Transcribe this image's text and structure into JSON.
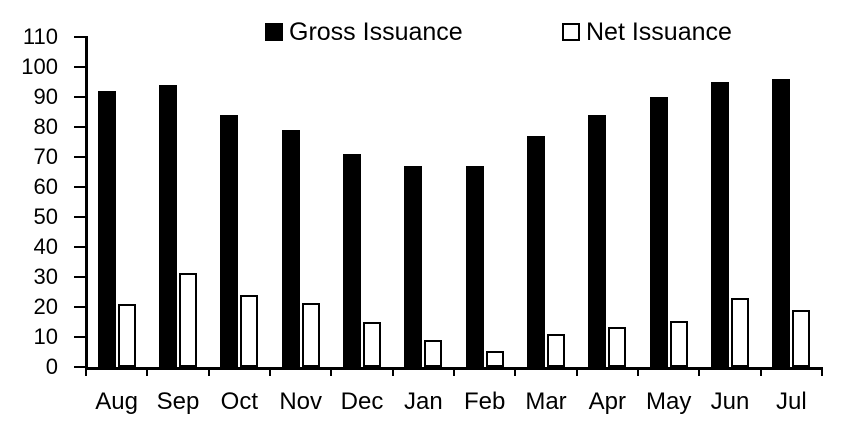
{
  "chart_data": {
    "type": "bar",
    "title": "",
    "xlabel": "",
    "ylabel": "",
    "categories": [
      "Aug",
      "Sep",
      "Oct",
      "Nov",
      "Dec",
      "Jan",
      "Feb",
      "Mar",
      "Apr",
      "May",
      "Jun",
      "Jul"
    ],
    "series": [
      {
        "name": "Gross Issuance",
        "values": [
          92,
          94,
          84,
          79,
          71,
          67,
          67,
          77,
          84,
          90,
          95,
          96
        ],
        "fill": "#000000",
        "outlined": false
      },
      {
        "name": "Net Issuance",
        "values": [
          21,
          31.5,
          24,
          21.5,
          15,
          9,
          5.5,
          11,
          13.5,
          15.5,
          23,
          19
        ],
        "fill": "#ffffff",
        "outlined": true
      }
    ],
    "yticks": [
      0,
      10,
      20,
      30,
      40,
      50,
      60,
      70,
      80,
      90,
      100,
      110
    ],
    "ylim": [
      0,
      110
    ],
    "grid": false,
    "legend_position": "top",
    "axis_color": "#000000",
    "bar_outline_color": "#000000",
    "background_color": "#ffffff"
  }
}
